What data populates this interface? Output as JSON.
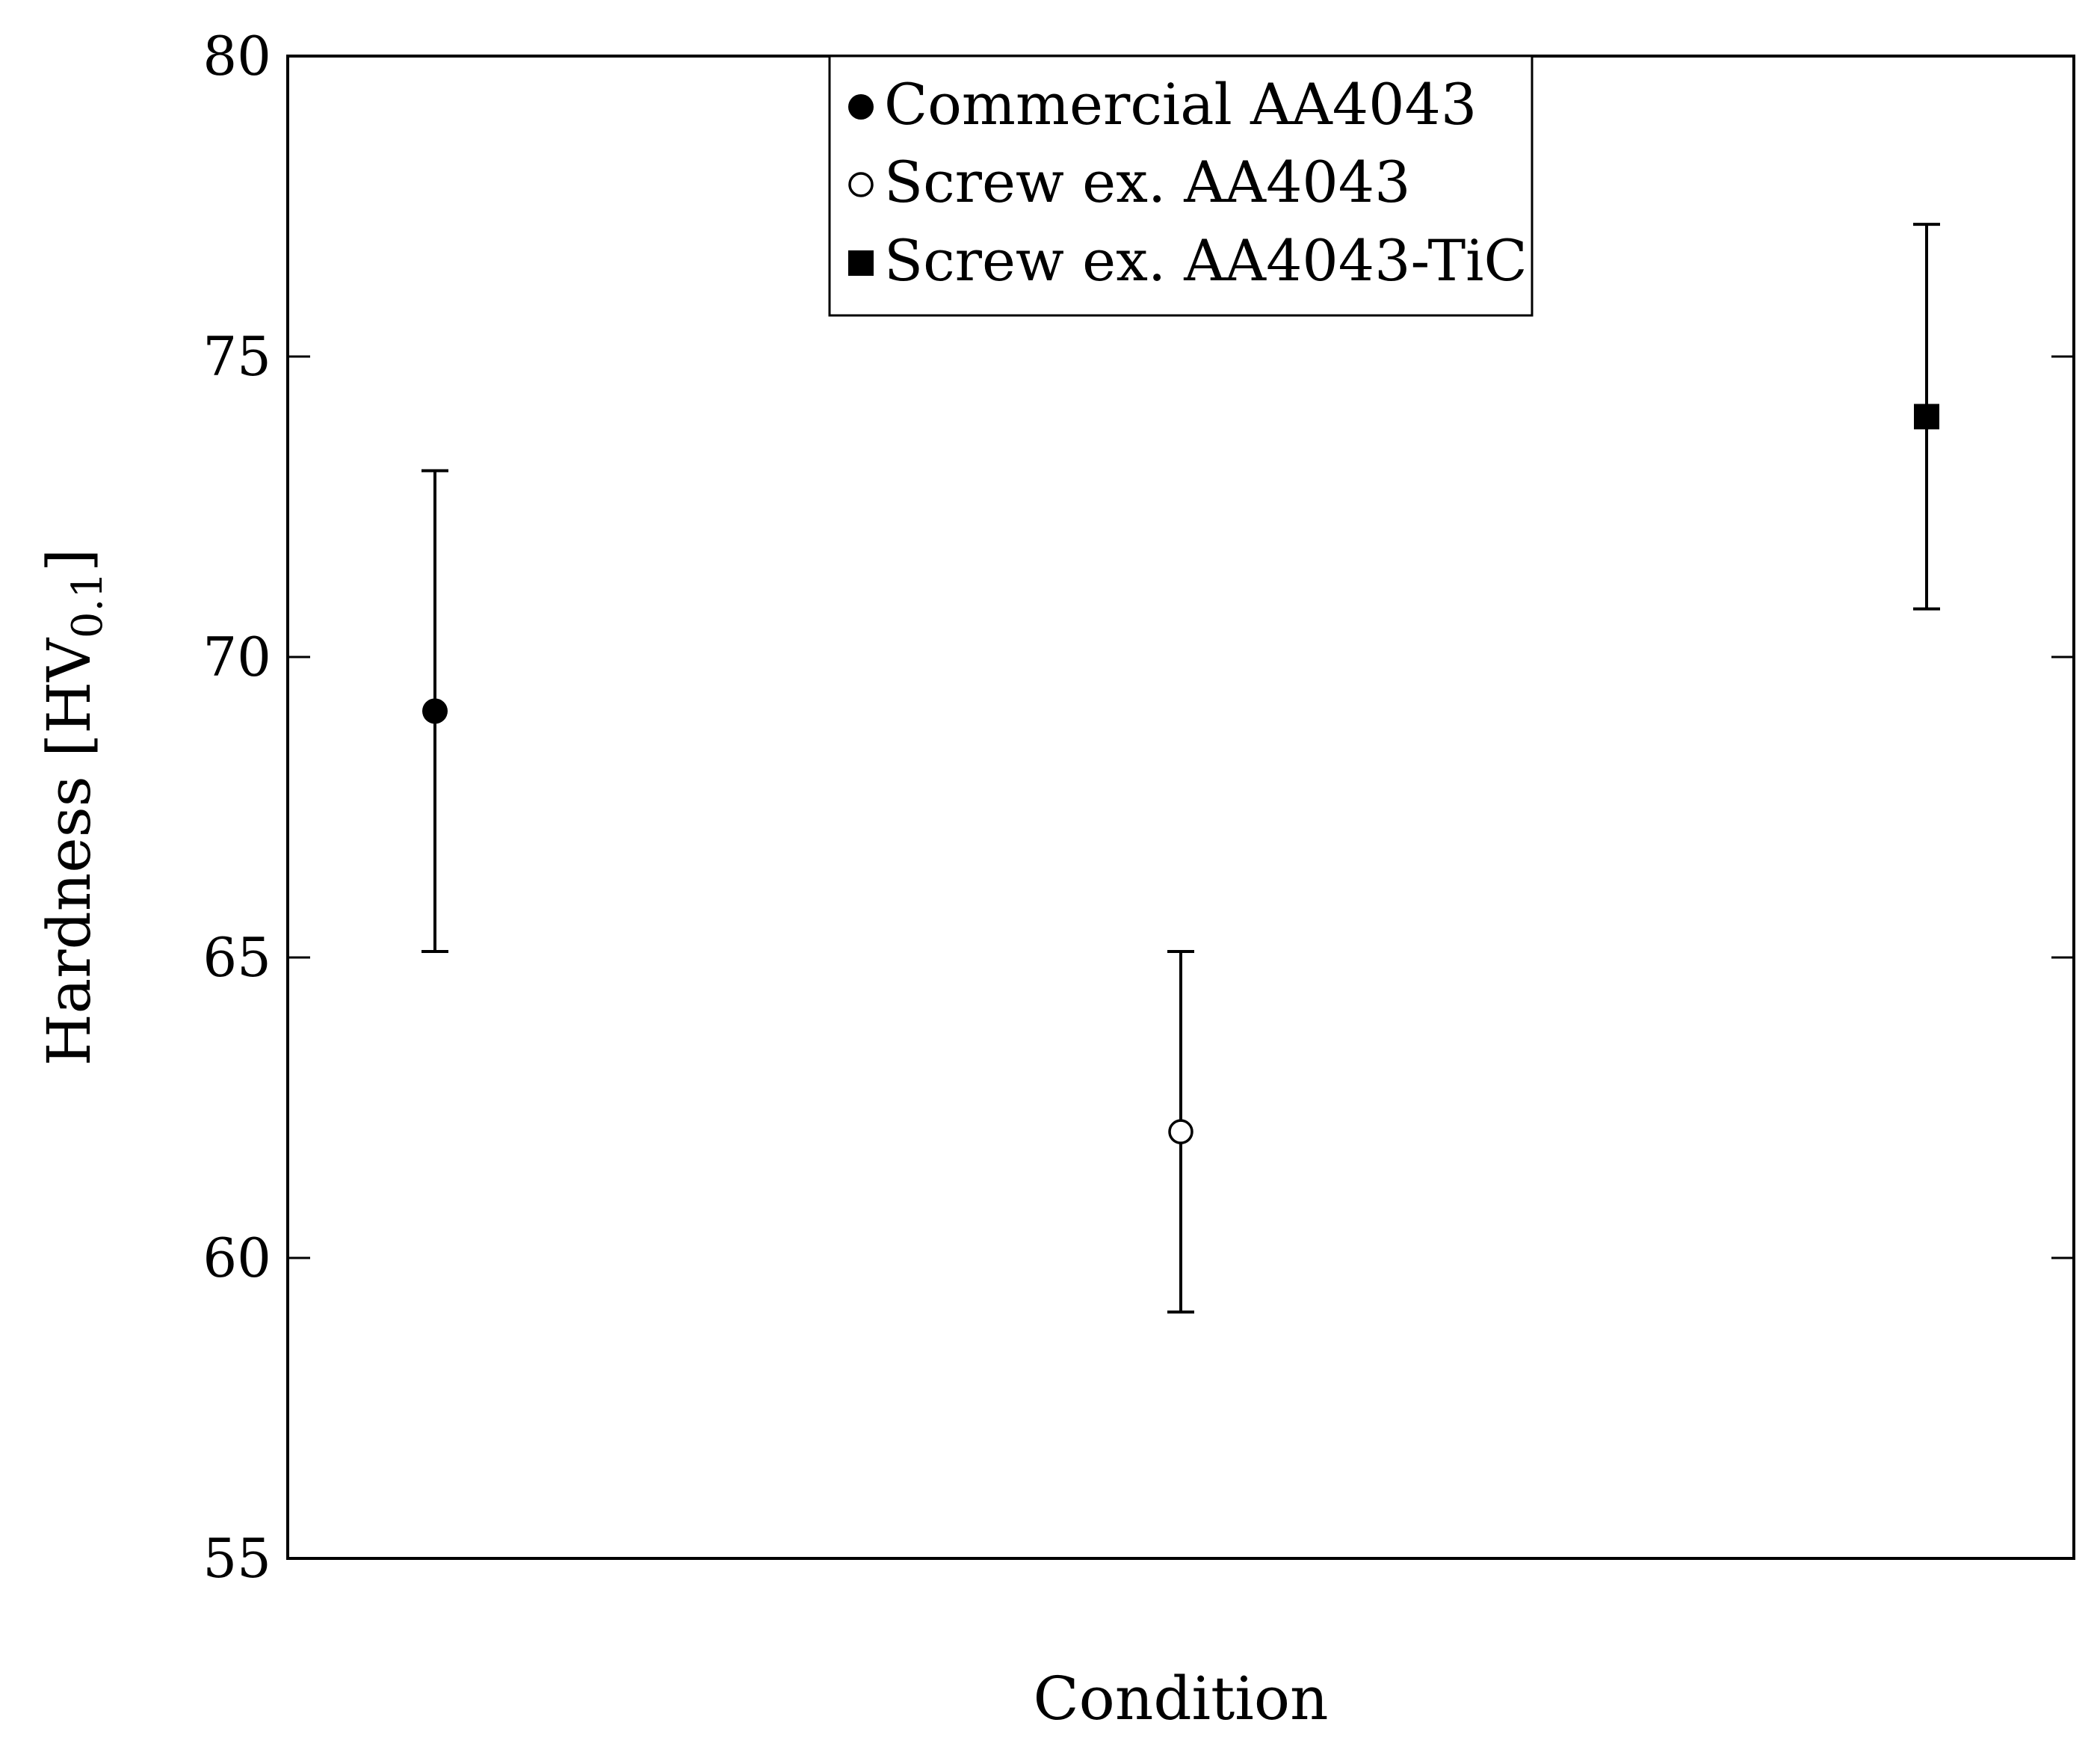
{
  "chart_data": {
    "type": "scatter",
    "title": "",
    "xlabel": "Condition",
    "ylabel": {
      "main": "Hardness [HV",
      "subscript": "0.1",
      "close": "]"
    },
    "ylim": [
      55,
      80
    ],
    "yticks": [
      "55",
      "60",
      "65",
      "70",
      "75",
      "80"
    ],
    "grid": false,
    "legend_position": "top-center",
    "series": [
      {
        "name": "Commercial AA4043",
        "marker": "filled-circle",
        "x": 1,
        "y": 69.1,
        "err_low": 65.1,
        "err_high": 73.1
      },
      {
        "name": "Screw ex. AA4043",
        "marker": "open-circle",
        "x": 2,
        "y": 62.1,
        "err_low": 59.1,
        "err_high": 65.1
      },
      {
        "name": "Screw ex. AA4043-TiC",
        "marker": "filled-square",
        "x": 3,
        "y": 74.0,
        "err_low": 70.8,
        "err_high": 77.2
      }
    ],
    "colors": {
      "marker": "#000000",
      "axis": "#000000",
      "background": "#ffffff"
    }
  }
}
